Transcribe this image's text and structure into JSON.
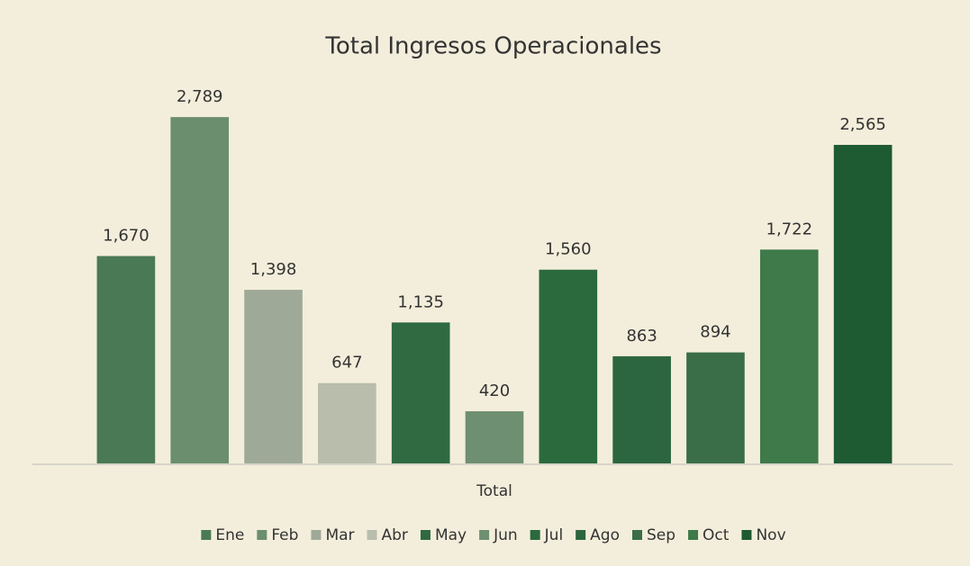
{
  "chart_data": {
    "type": "bar",
    "title": "Total Ingresos Operacionales",
    "categories": [
      "Total"
    ],
    "ylim": [
      0,
      3000
    ],
    "legend": "bottom",
    "series": [
      {
        "name": "Ene",
        "color": "#4a7a55",
        "values": [
          1670
        ],
        "value_labels": [
          "1,670"
        ]
      },
      {
        "name": "Feb",
        "color": "#6b8f6e",
        "values": [
          2789
        ],
        "value_labels": [
          "2,789"
        ]
      },
      {
        "name": "Mar",
        "color": "#9eaa97",
        "values": [
          1398
        ],
        "value_labels": [
          "1,398"
        ]
      },
      {
        "name": "Abr",
        "color": "#b9bdab",
        "values": [
          647
        ],
        "value_labels": [
          "647"
        ]
      },
      {
        "name": "May",
        "color": "#2f6a40",
        "values": [
          1135
        ],
        "value_labels": [
          "1,135"
        ]
      },
      {
        "name": "Jun",
        "color": "#6f8f72",
        "values": [
          420
        ],
        "value_labels": [
          "420"
        ]
      },
      {
        "name": "Jul",
        "color": "#2a6a3c",
        "values": [
          1560
        ],
        "value_labels": [
          "1,560"
        ]
      },
      {
        "name": "Ago",
        "color": "#2c6640",
        "values": [
          863
        ],
        "value_labels": [
          "863"
        ]
      },
      {
        "name": "Sep",
        "color": "#3a6e48",
        "values": [
          894
        ],
        "value_labels": [
          "894"
        ]
      },
      {
        "name": "Oct",
        "color": "#3f7a4a",
        "values": [
          1722
        ],
        "value_labels": [
          "1,722"
        ]
      },
      {
        "name": "Nov",
        "color": "#1e5a32",
        "values": [
          2565
        ],
        "value_labels": [
          "2,565"
        ]
      }
    ]
  }
}
